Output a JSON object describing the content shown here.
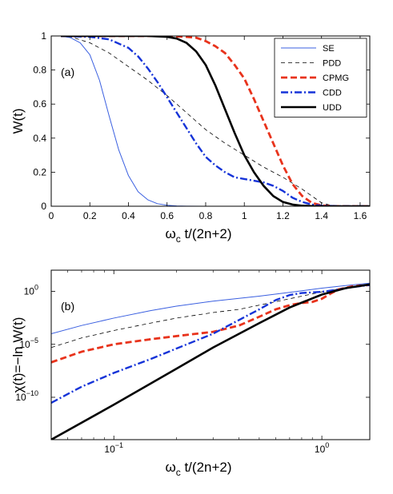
{
  "chart_data": [
    {
      "type": "line",
      "panel_label": "(a)",
      "xlabel_main": "ω",
      "xlabel_sub": "c",
      "xlabel_rest": " t/(2n+2)",
      "ylabel": "W(t)",
      "xlim": [
        0,
        1.65
      ],
      "ylim": [
        0,
        1
      ],
      "xscale": "linear",
      "yscale": "linear",
      "xticks": [
        0,
        0.2,
        0.4,
        0.6,
        0.8,
        1,
        1.2,
        1.4,
        1.6
      ],
      "xtick_labels": [
        "0",
        "0.2",
        "0.4",
        "0.6",
        "0.8",
        "1",
        "1.2",
        "1.4",
        "1.6"
      ],
      "yticks": [
        0,
        0.2,
        0.4,
        0.6,
        0.8,
        1
      ],
      "ytick_labels": [
        "0",
        "0.2",
        "0.4",
        "0.6",
        "0.8",
        "1"
      ],
      "legend_position": "top-right",
      "series": [
        {
          "name": "SE",
          "color": "#3a5fe0",
          "width": 1,
          "dash": "",
          "x": [
            0.05,
            0.1,
            0.15,
            0.2,
            0.25,
            0.3,
            0.35,
            0.4,
            0.45,
            0.5,
            0.55,
            0.6,
            0.65,
            0.7,
            0.8,
            0.9,
            1.0,
            1.2,
            1.4,
            1.65
          ],
          "y": [
            1.0,
            0.99,
            0.96,
            0.89,
            0.74,
            0.53,
            0.33,
            0.18,
            0.085,
            0.038,
            0.015,
            0.006,
            0.002,
            0.0008,
            0.0001,
            0,
            0,
            0,
            0,
            0
          ]
        },
        {
          "name": "PDD",
          "color": "#000000",
          "width": 0.8,
          "dash": "5,4",
          "x": [
            0.05,
            0.1,
            0.2,
            0.3,
            0.4,
            0.5,
            0.6,
            0.7,
            0.8,
            0.9,
            1.0,
            1.1,
            1.2,
            1.3,
            1.35,
            1.4,
            1.45,
            1.5,
            1.65
          ],
          "y": [
            1.0,
            0.995,
            0.96,
            0.9,
            0.82,
            0.74,
            0.65,
            0.55,
            0.45,
            0.37,
            0.3,
            0.23,
            0.17,
            0.1,
            0.06,
            0.02,
            0.005,
            0,
            0
          ]
        },
        {
          "name": "CPMG",
          "color": "#e8331c",
          "width": 2.8,
          "dash": "8,4",
          "x": [
            0.05,
            0.3,
            0.6,
            0.7,
            0.75,
            0.8,
            0.85,
            0.9,
            0.95,
            1.0,
            1.05,
            1.1,
            1.15,
            1.2,
            1.25,
            1.3,
            1.35,
            1.4,
            1.45,
            1.5,
            1.65
          ],
          "y": [
            1.0,
            1.0,
            1.0,
            0.995,
            0.99,
            0.97,
            0.94,
            0.9,
            0.83,
            0.75,
            0.63,
            0.5,
            0.37,
            0.24,
            0.13,
            0.06,
            0.02,
            0.005,
            0.001,
            0,
            0
          ]
        },
        {
          "name": "CDD",
          "color": "#1533d8",
          "width": 2.4,
          "dash": "9,3,2,3",
          "x": [
            0.05,
            0.2,
            0.3,
            0.4,
            0.45,
            0.5,
            0.55,
            0.6,
            0.65,
            0.7,
            0.75,
            0.8,
            0.85,
            0.9,
            0.95,
            1.0,
            1.05,
            1.1,
            1.15,
            1.2,
            1.25,
            1.3,
            1.35,
            1.4,
            1.5,
            1.65
          ],
          "y": [
            1.0,
            0.995,
            0.98,
            0.93,
            0.88,
            0.81,
            0.73,
            0.64,
            0.55,
            0.46,
            0.37,
            0.29,
            0.24,
            0.2,
            0.17,
            0.16,
            0.15,
            0.14,
            0.12,
            0.09,
            0.05,
            0.025,
            0.01,
            0.003,
            0,
            0
          ]
        },
        {
          "name": "UDD",
          "color": "#000000",
          "width": 2.6,
          "dash": "",
          "x": [
            0.05,
            0.5,
            0.6,
            0.65,
            0.7,
            0.75,
            0.8,
            0.85,
            0.9,
            0.95,
            1.0,
            1.05,
            1.1,
            1.15,
            1.2,
            1.25,
            1.3,
            1.35,
            1.4,
            1.5,
            1.65
          ],
          "y": [
            1.0,
            1.0,
            0.995,
            0.985,
            0.96,
            0.91,
            0.83,
            0.71,
            0.57,
            0.43,
            0.3,
            0.2,
            0.12,
            0.06,
            0.025,
            0.01,
            0.003,
            0.001,
            0,
            0,
            0
          ]
        }
      ]
    },
    {
      "type": "line",
      "panel_label": "(b)",
      "xlabel_main": "ω",
      "xlabel_sub": "c",
      "xlabel_rest": " t/(2n+2)",
      "ylabel": "χ(t)=−ln W(t)",
      "xlim": [
        0.05,
        1.7
      ],
      "ylim": [
        1e-14,
        100.0
      ],
      "xscale": "log",
      "yscale": "log",
      "xticks": [
        0.1,
        1
      ],
      "xtick_base": "10",
      "xtick_exps": [
        "−1",
        "0"
      ],
      "yticks": [
        1,
        1e-05,
        1e-10
      ],
      "ytick_base": "10",
      "ytick_exps": [
        "0",
        "−5",
        "−10"
      ],
      "series": [
        {
          "name": "SE",
          "color": "#3a5fe0",
          "width": 1,
          "dash": "",
          "x": [
            0.05,
            0.07,
            0.1,
            0.15,
            0.2,
            0.3,
            0.5,
            0.7,
            1.0,
            1.3,
            1.7
          ],
          "y": [
            0.0001,
            0.0006,
            0.003,
            0.015,
            0.04,
            0.12,
            0.35,
            0.8,
            2.0,
            3.5,
            6.0
          ]
        },
        {
          "name": "PDD",
          "color": "#000000",
          "width": 0.8,
          "dash": "5,4",
          "x": [
            0.05,
            0.07,
            0.1,
            0.15,
            0.2,
            0.3,
            0.4,
            0.5,
            0.7,
            1.0,
            1.3,
            1.7
          ],
          "y": [
            5e-06,
            4e-05,
            0.0002,
            0.001,
            0.003,
            0.01,
            0.02,
            0.05,
            0.2,
            0.9,
            2.0,
            4.0
          ]
        },
        {
          "name": "CPMG",
          "color": "#e8331c",
          "width": 2.8,
          "dash": "8,4",
          "x": [
            0.05,
            0.07,
            0.1,
            0.15,
            0.2,
            0.25,
            0.3,
            0.4,
            0.5,
            0.6,
            0.7,
            0.8,
            0.9,
            1.0,
            1.1,
            1.2,
            1.4,
            1.7
          ],
          "y": [
            2e-07,
            2e-06,
            1e-05,
            3e-05,
            6e-05,
            0.0001,
            0.00015,
            0.0006,
            0.004,
            0.02,
            0.05,
            0.08,
            0.1,
            0.2,
            0.6,
            1.5,
            3.0,
            4.0
          ]
        },
        {
          "name": "CDD",
          "color": "#1533d8",
          "width": 2.4,
          "dash": "9,3,2,3",
          "x": [
            0.05,
            0.07,
            0.1,
            0.15,
            0.2,
            0.3,
            0.4,
            0.5,
            0.6,
            0.7,
            0.8,
            0.9,
            1.0,
            1.2,
            1.4,
            1.7
          ],
          "y": [
            3e-11,
            1e-09,
            2e-08,
            4e-07,
            4e-06,
            0.0001,
            0.002,
            0.02,
            0.15,
            0.45,
            0.7,
            0.8,
            0.9,
            1.5,
            2.5,
            4.0
          ]
        },
        {
          "name": "UDD",
          "color": "#000000",
          "width": 2.6,
          "dash": "",
          "x": [
            0.05,
            0.1,
            0.2,
            0.3,
            0.5,
            0.7,
            1.0,
            1.3,
            1.7
          ],
          "y": [
            1e-14,
            2e-11,
            5e-08,
            5e-06,
            0.001,
            0.03,
            0.5,
            2.0,
            4.5
          ]
        }
      ]
    }
  ]
}
